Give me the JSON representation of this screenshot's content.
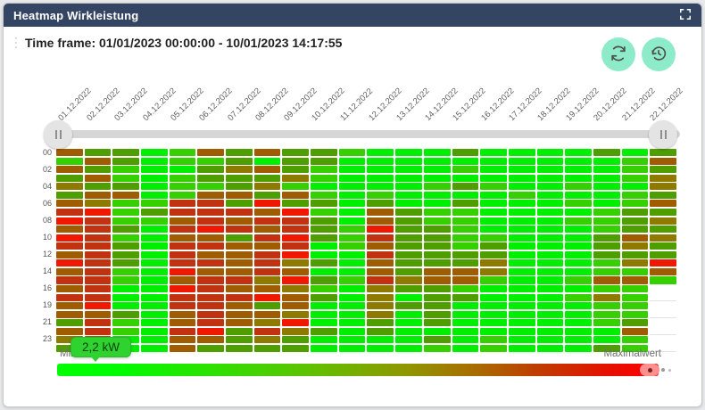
{
  "header": {
    "title": "Heatmap Wirkleistung",
    "bg_color": "#344564"
  },
  "toolbar": {
    "time_frame": "Time frame: 01/01/2023 00:00:00 - 10/01/2023 14:17:55",
    "refresh_button": "refresh",
    "history_button": "reset-time-range",
    "button_bg": "#8DEBCA"
  },
  "chart_data": {
    "type": "heatmap",
    "title": "Heatmap Wirkleistung",
    "x_labels": [
      "01.12.2022",
      "02.12.2022",
      "03.12.2022",
      "04.12.2022",
      "05.12.2022",
      "06.12.2022",
      "07.12.2022",
      "08.12.2022",
      "09.12.2022",
      "10.12.2022",
      "11.12.2022",
      "12.12.2022",
      "13.12.2022",
      "14.12.2022",
      "15.12.2022",
      "16.12.2022",
      "17.12.2022",
      "18.12.2022",
      "19.12.2022",
      "20.12.2022",
      "21.12.2022",
      "22.12.2022"
    ],
    "y_tick_labels": [
      "00",
      "02",
      "04",
      "06",
      "08",
      "10",
      "12",
      "14",
      "16",
      "19",
      "21",
      "23"
    ],
    "rows_per_tick": 2,
    "n_rows": 24,
    "n_cols": 22,
    "palette": {
      "G": "#00ee00",
      "g": "#36cf00",
      "d": "#4f9e00",
      "o": "#8f7a00",
      "b": "#a05c00",
      "r": "#c03210",
      "R": "#ef1800"
    },
    "cells": [
      "bddGgbdbddgGGGdGGGGdGd",
      "gbdGggdGddGGGGGGGGGGgb",
      "bdgGGdobdgGGGGgGGGGGgd",
      "dbgGgdddogGGGGGGGGGGgo",
      "oddGggdogGGGGgdgGGgGGo",
      "dbbGgbbdbgGgGGGGgGGGgd",
      "boggrrdRddGdGGdGGGgGgb",
      "rRgdrrrbRgGbdggGGGGgdd",
      "RrggbrbrrdGbdggGGGggdo",
      "brdGrRrbrdgRddgGGGGgdd",
      "RrgGbbdrRdgrddggGGGdbo",
      "rrdGrrbbrGgbddgdGGGdod",
      "brdGrbbrRGGrddddGGGddd",
      "RrdGrrbrodGbdddoGGGgoR",
      "brgGRbbrbGGbdbboGGGggb",
      "rrgGbrroRdgrobbgGGgbbg",
      "brGGRrbbogGoddgGGGGggx",
      "rrGGrrrRbdGoGddGGGgogx",
      "bRGGrrbdbGGoddGGGGGggx",
      "bbdGbrbboGGoGdGGGGGggx",
      "drgGbrboRGGdGdGGGGGgdx",
      "brgGrRdrodGdGGGGGGGGbx",
      "obGGbbdodGGGGdGgGGGGgx",
      "dgGGbddddGGGGgGgGGGdgx"
    ],
    "legend": {
      "min_label": "Minimalwert",
      "max_label": "Maximalwert",
      "gradient_stops": [
        "#00ff00 0%",
        "#00fb00 10%",
        "#2fe000 26%",
        "#5fc100 42%",
        "#8f9700 58%",
        "#a96a00 70%",
        "#bf3c00 80%",
        "#e60f00 92%",
        "#ff0000 100%"
      ]
    },
    "tooltip": {
      "value": "2,2 kW"
    }
  }
}
